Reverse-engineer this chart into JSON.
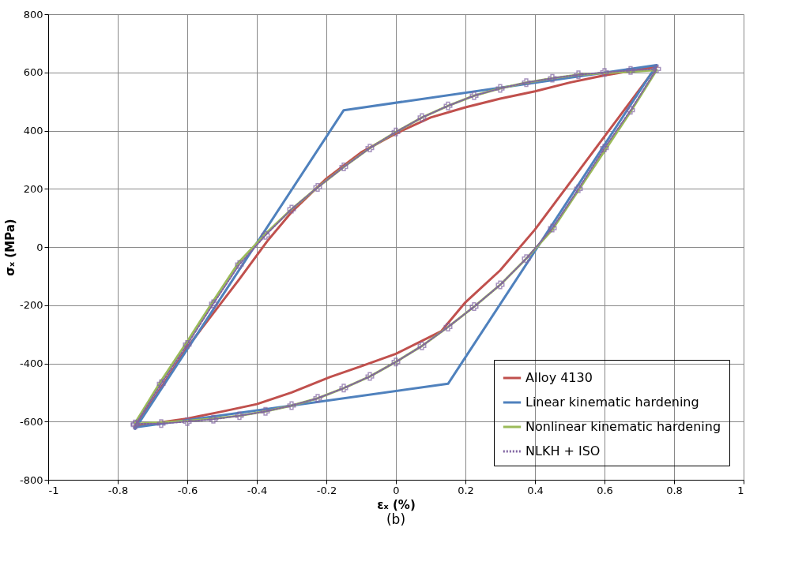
{
  "chart_data": {
    "type": "line",
    "xlabel": "εₓ (%)",
    "ylabel": "σₓ (MPa)",
    "annotations": [
      "(b)"
    ],
    "xlim": [
      -1,
      1
    ],
    "xticks": [
      -1,
      -0.8,
      -0.6,
      -0.4,
      -0.2,
      0,
      0.2,
      0.4,
      0.6,
      0.8,
      1
    ],
    "ylim": [
      -800,
      800
    ],
    "yticks": [
      -800,
      -600,
      -400,
      -200,
      0,
      200,
      400,
      600,
      800
    ],
    "grid": true,
    "legend": "bottom right",
    "series": [
      {
        "name": "Alloy 4130",
        "color": "#c0504d",
        "line_style": "solid",
        "marker": "none",
        "x": [
          -0.75,
          -0.6,
          -0.45,
          -0.37,
          -0.3,
          -0.2,
          -0.1,
          0,
          0.1,
          0.2,
          0.3,
          0.4,
          0.5,
          0.6,
          0.75,
          0.6,
          0.5,
          0.4,
          0.3,
          0.2,
          0.13,
          0,
          -0.1,
          -0.19,
          -0.3,
          -0.4,
          -0.49,
          -0.6,
          -0.75
        ],
        "values": [
          -620,
          -345,
          -110,
          20,
          120,
          235,
          325,
          390,
          445,
          480,
          510,
          535,
          565,
          590,
          620,
          380,
          220,
          60,
          -80,
          -190,
          -290,
          -367,
          -410,
          -447,
          -500,
          -540,
          -563,
          -590,
          -615
        ]
      },
      {
        "name": "Linear kinematic hardening",
        "color": "#4f81bd",
        "line_style": "solid",
        "marker": "none",
        "x": [
          -0.75,
          -0.15,
          0.75,
          0.15,
          -0.75
        ],
        "values": [
          -625,
          470,
          625,
          -470,
          -620
        ]
      },
      {
        "name": "Nonlinear kinematic hardening",
        "color": "#9bbb59",
        "line_style": "solid",
        "marker": "none",
        "x": [
          -0.75,
          -0.675,
          -0.6,
          -0.525,
          -0.45,
          -0.375,
          -0.3,
          -0.225,
          -0.15,
          -0.075,
          0,
          0.075,
          0.15,
          0.225,
          0.3,
          0.375,
          0.45,
          0.525,
          0.6,
          0.675,
          0.75,
          0.675,
          0.6,
          0.525,
          0.45,
          0.375,
          0.3,
          0.225,
          0.15,
          0.075,
          0,
          -0.075,
          -0.15,
          -0.225,
          -0.3,
          -0.375,
          -0.45,
          -0.525,
          -0.6,
          -0.675,
          -0.75
        ],
        "values": [
          -605,
          -460,
          -325,
          -185,
          -50,
          45,
          130,
          205,
          275,
          340,
          395,
          445,
          485,
          520,
          545,
          565,
          580,
          592,
          598,
          603,
          608,
          465,
          330,
          195,
          60,
          -40,
          -130,
          -205,
          -275,
          -340,
          -395,
          -445,
          -485,
          -520,
          -545,
          -565,
          -580,
          -590,
          -598,
          -603,
          -608
        ]
      },
      {
        "name": "NLKH + ISO",
        "color": "#8064a2",
        "line_style": "dotted",
        "marker": "cross",
        "x": [
          -0.75,
          -0.675,
          -0.6,
          -0.525,
          -0.45,
          -0.375,
          -0.3,
          -0.225,
          -0.15,
          -0.075,
          0,
          0.075,
          0.15,
          0.225,
          0.3,
          0.375,
          0.45,
          0.525,
          0.6,
          0.675,
          0.75,
          0.675,
          0.6,
          0.525,
          0.45,
          0.375,
          0.3,
          0.225,
          0.15,
          0.075,
          0,
          -0.075,
          -0.15,
          -0.225,
          -0.3,
          -0.375,
          -0.45,
          -0.525,
          -0.6,
          -0.675,
          -0.75
        ],
        "values": [
          -612,
          -470,
          -335,
          -195,
          -60,
          40,
          130,
          205,
          275,
          340,
          395,
          445,
          485,
          520,
          545,
          565,
          580,
          592,
          600,
          607,
          612,
          470,
          340,
          200,
          65,
          -40,
          -130,
          -205,
          -275,
          -340,
          -395,
          -445,
          -485,
          -520,
          -545,
          -565,
          -580,
          -592,
          -600,
          -607,
          -608
        ]
      }
    ]
  }
}
